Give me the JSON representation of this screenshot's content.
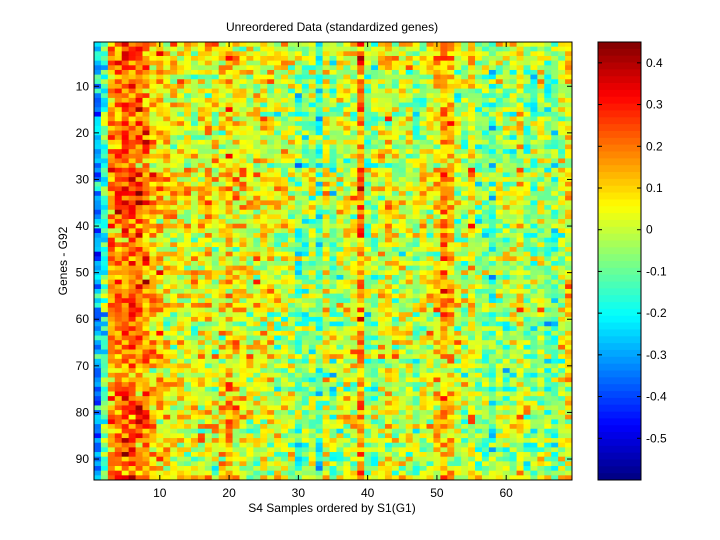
{
  "chart_data": {
    "type": "heatmap",
    "title": "Unreordered Data (standardized genes)",
    "xlabel": "S4 Samples ordered by S1(G1)",
    "ylabel": "Genes - G92",
    "n_columns": 69,
    "n_rows": 94,
    "xlim": [
      0.5,
      69.5
    ],
    "ylim": [
      0.5,
      94.5
    ],
    "y_reversed": true,
    "x_ticks": [
      10,
      20,
      30,
      40,
      50,
      60
    ],
    "x_tick_labels": [
      "10",
      "20",
      "30",
      "40",
      "50",
      "60"
    ],
    "y_ticks": [
      10,
      20,
      30,
      40,
      50,
      60,
      70,
      80,
      90
    ],
    "y_tick_labels": [
      "10",
      "20",
      "30",
      "40",
      "50",
      "60",
      "70",
      "80",
      "90"
    ],
    "colormap": "jet",
    "color_limits": [
      -0.6,
      0.45
    ],
    "colorbar_ticks": [
      0.4,
      0.3,
      0.2,
      0.1,
      0,
      -0.1,
      -0.2,
      -0.3,
      -0.4,
      -0.5
    ],
    "colorbar_tick_labels": [
      "0.4",
      "0.3",
      "0.2",
      "0.1",
      "0",
      "-0.1",
      "-0.2",
      "-0.3",
      "-0.4",
      "-0.5"
    ],
    "column_means": [
      -0.28,
      -0.12,
      0.16,
      0.2,
      0.22,
      0.22,
      0.2,
      0.16,
      0.12,
      0.1,
      0.08,
      0.06,
      0.05,
      0.04,
      0.03,
      0.03,
      0.05,
      0.03,
      0.06,
      0.12,
      0.08,
      0.06,
      0.03,
      0.03,
      0.05,
      0.03,
      0.01,
      0.02,
      0.0,
      -0.1,
      -0.08,
      -0.02,
      -0.12,
      0.02,
      -0.08,
      0.0,
      0.01,
      0.02,
      0.18,
      -0.04,
      -0.05,
      0.03,
      0.07,
      0.0,
      0.0,
      0.01,
      -0.04,
      0.01,
      0.02,
      0.06,
      0.14,
      0.12,
      0.0,
      -0.02,
      0.06,
      -0.04,
      -0.06,
      -0.12,
      0.0,
      -0.03,
      -0.02,
      0.05,
      -0.05,
      -0.08,
      -0.02,
      -0.08,
      -0.08,
      0.0,
      0.06
    ],
    "cell_noise_sd": 0.09,
    "grid": false
  }
}
